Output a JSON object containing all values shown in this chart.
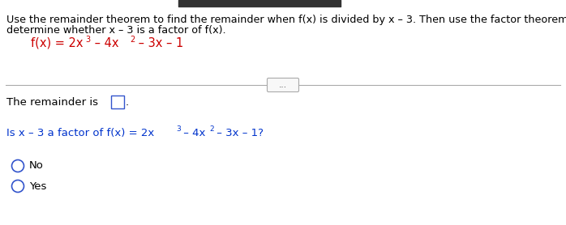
{
  "bg_color": "#ffffff",
  "instruction_line1": "Use the remainder theorem to find the remainder when f(x) is divided by x – 3. Then use the factor theorem to",
  "instruction_line2": "determine whether x – 3 is a factor of f(x).",
  "text_color": "#000000",
  "math_color": "#cc0000",
  "link_color": "#0033cc",
  "box_color": "#3355cc",
  "circle_color": "#3355cc",
  "font_size_instruction": 9.2,
  "font_size_math_fx": 10.5,
  "font_size_sup_fx": 7.0,
  "font_size_body": 9.5,
  "font_size_sup_body": 6.5,
  "font_size_dots": 7.5,
  "option_no": "No",
  "option_yes": "Yes"
}
